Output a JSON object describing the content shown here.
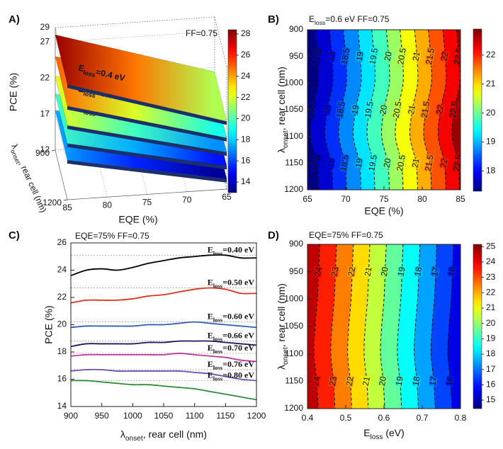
{
  "chart_data": [
    {
      "type": "surface3d",
      "panel": "A)",
      "annotation": "FF=0.75",
      "xlabel": "EQE (%)",
      "ylabel": [
        "λ",
        {
          "sub": "onset"
        },
        ", rear cell (nm)"
      ],
      "zlabel": "PCE (%)",
      "xlim": [
        85,
        65
      ],
      "xticks": [
        85,
        80,
        75,
        70,
        65
      ],
      "ylim": [
        900,
        1200
      ],
      "yticks": [
        900,
        1200
      ],
      "zlim": [
        12,
        29
      ],
      "zticks": [
        12,
        17,
        22,
        27,
        29
      ],
      "clim": [
        13.0,
        28.4
      ],
      "cticks": [
        14,
        16,
        18,
        20,
        22,
        24,
        26,
        28
      ],
      "series": [
        {
          "name": [
            "E",
            {
              "sub": "loss"
            },
            "=0.4 eV"
          ],
          "values": [
            28.0,
            21.4
          ]
        },
        {
          "name": [
            "E",
            {
              "sub": "loss"
            },
            "=0.5 eV"
          ],
          "values": [
            25.0,
            19.1
          ]
        },
        {
          "name": [
            "E",
            {
              "sub": "loss"
            },
            "=0.6 eV"
          ],
          "values": [
            22.3,
            17.1
          ]
        },
        {
          "name": [
            "E",
            {
              "sub": "loss"
            },
            "=0.7 eV"
          ],
          "values": [
            19.8,
            15.2
          ]
        },
        {
          "name": [
            "E",
            {
              "sub": "loss"
            },
            "=0.8 eV"
          ],
          "values": [
            17.5,
            13.4
          ]
        }
      ]
    },
    {
      "type": "contour",
      "panel": "B)",
      "title": [
        "E",
        {
          "sub": "loss"
        },
        "=0.6 eV FF=0.75"
      ],
      "xlabel": "EQE (%)",
      "ylabel": [
        "λ",
        {
          "sub": "onset"
        },
        ", rear cell (nm)"
      ],
      "xlim": [
        65,
        85
      ],
      "xticks": [
        65,
        70,
        75,
        80,
        85
      ],
      "ylim": [
        1200,
        900
      ],
      "yticks": [
        900,
        950,
        1000,
        1050,
        1100,
        1150,
        1200
      ],
      "clim": [
        17.3,
        22.9
      ],
      "cticks": [
        18,
        19,
        20,
        21,
        22
      ],
      "contour_y": [
        900,
        950,
        1000,
        1050,
        1100,
        1150,
        1200
      ],
      "contours": [
        {
          "level": 17.5,
          "x": [
            66.0,
            66.3,
            66.4,
            65.7,
            65.4,
            66.2,
            66.4
          ]
        },
        {
          "level": 18,
          "x": [
            67.9,
            68.2,
            68.3,
            67.6,
            67.3,
            68.1,
            68.3
          ]
        },
        {
          "level": 18.5,
          "x": [
            69.7,
            70.0,
            70.1,
            69.4,
            69.1,
            69.9,
            70.1
          ]
        },
        {
          "level": 19,
          "x": [
            71.6,
            71.9,
            72.0,
            71.3,
            71.0,
            71.8,
            72.0
          ]
        },
        {
          "level": 19.5,
          "x": [
            73.4,
            73.7,
            73.8,
            73.1,
            72.8,
            73.6,
            73.8
          ]
        },
        {
          "level": 20,
          "x": [
            75.3,
            75.6,
            75.7,
            75.0,
            74.7,
            75.5,
            75.7
          ]
        },
        {
          "level": 20.5,
          "x": [
            77.1,
            77.4,
            77.5,
            76.8,
            76.5,
            77.3,
            77.5
          ]
        },
        {
          "level": 21,
          "x": [
            79.0,
            79.3,
            79.4,
            78.7,
            78.4,
            79.2,
            79.4
          ]
        },
        {
          "level": 21.5,
          "x": [
            80.8,
            81.1,
            81.2,
            80.5,
            80.2,
            81.0,
            81.2
          ]
        },
        {
          "level": 22,
          "x": [
            82.7,
            83.0,
            83.1,
            82.4,
            82.1,
            82.9,
            83.1
          ]
        },
        {
          "level": 22.5,
          "x": [
            84.5,
            84.8,
            84.9,
            84.2,
            83.9,
            84.7,
            84.9
          ]
        }
      ]
    },
    {
      "type": "line",
      "panel": "C)",
      "title": "EQE=75% FF=0.75",
      "xlabel": [
        "λ",
        {
          "sub": "onset"
        },
        ", rear cell (nm)"
      ],
      "ylabel": "PCE (%)",
      "x": [
        900,
        925,
        950,
        975,
        1000,
        1025,
        1050,
        1075,
        1100,
        1125,
        1150,
        1175,
        1200
      ],
      "xlim": [
        900,
        1200
      ],
      "xticks": [
        900,
        950,
        1000,
        1050,
        1100,
        1150,
        1200
      ],
      "ylim": [
        14,
        26
      ],
      "yticks": [
        14,
        16,
        18,
        20,
        22,
        24,
        26
      ],
      "series": [
        {
          "name": [
            "E",
            {
              "sub": "loss"
            },
            "=0.40 eV"
          ],
          "color": "#000000",
          "values": [
            23.6,
            24.0,
            24.1,
            24.0,
            24.2,
            24.5,
            24.7,
            24.9,
            25.0,
            25.1,
            25.1,
            24.9,
            24.9
          ]
        },
        {
          "name": [
            "E",
            {
              "sub": "loss"
            },
            "=0.50 eV"
          ],
          "color": "#e0301e",
          "values": [
            21.6,
            21.8,
            21.8,
            21.8,
            21.9,
            22.1,
            22.2,
            22.4,
            22.6,
            22.7,
            22.6,
            22.3,
            22.3
          ]
        },
        {
          "name": [
            "E",
            {
              "sub": "loss"
            },
            "=0.60 eV"
          ],
          "color": "#2f5fb3",
          "values": [
            19.8,
            19.9,
            19.9,
            19.9,
            19.9,
            20.0,
            20.0,
            20.1,
            20.2,
            20.1,
            20.0,
            19.9,
            19.8
          ]
        },
        {
          "name": [
            "E",
            {
              "sub": "loss"
            },
            "=0.66 eV"
          ],
          "color": "#1a1a5e",
          "values": [
            18.4,
            18.6,
            18.6,
            18.6,
            18.6,
            18.7,
            18.7,
            18.8,
            18.8,
            18.8,
            18.7,
            18.6,
            18.5
          ]
        },
        {
          "name": [
            "E",
            {
              "sub": "loss"
            },
            "=0.70 eV"
          ],
          "color": "#b8389e",
          "values": [
            17.7,
            17.8,
            17.8,
            17.8,
            17.8,
            17.8,
            17.8,
            17.9,
            17.8,
            17.7,
            17.6,
            17.4,
            17.3
          ]
        },
        {
          "name": [
            "E",
            {
              "sub": "loss"
            },
            "=0.76 eV"
          ],
          "color": "#6a4fb0",
          "values": [
            16.6,
            16.7,
            16.7,
            16.6,
            16.6,
            16.6,
            16.6,
            16.6,
            16.5,
            16.4,
            16.2,
            16.0,
            15.9
          ]
        },
        {
          "name": [
            "E",
            {
              "sub": "loss"
            },
            "=0.80 eV"
          ],
          "color": "#2e8b3a",
          "values": [
            15.9,
            15.9,
            15.8,
            15.7,
            15.6,
            15.6,
            15.5,
            15.4,
            15.3,
            15.1,
            14.9,
            14.7,
            14.5
          ]
        }
      ]
    },
    {
      "type": "contour",
      "panel": "D)",
      "title": "EQE=75% FF=0.75",
      "xlabel": [
        "E",
        {
          "sub": "loss"
        },
        " (eV)"
      ],
      "ylabel": [
        "λ",
        {
          "sub": "onset"
        },
        ", rear cell (nm)"
      ],
      "xlim": [
        0.4,
        0.8
      ],
      "xticks": [
        0.4,
        0.5,
        0.6,
        0.7,
        0.8
      ],
      "ylim": [
        1200,
        900
      ],
      "yticks": [
        900,
        950,
        1000,
        1050,
        1100,
        1150,
        1200
      ],
      "clim": [
        14.45,
        25.15
      ],
      "cticks": [
        15,
        16,
        17,
        18,
        19,
        20,
        21,
        22,
        23,
        24,
        25
      ],
      "contour_y": [
        900,
        950,
        1000,
        1050,
        1100,
        1150,
        1200
      ],
      "contours": [
        {
          "level": 24,
          "x": [
            0.432,
            0.429,
            0.426,
            0.42,
            0.417,
            0.424,
            0.428
          ]
        },
        {
          "level": 23,
          "x": [
            0.476,
            0.473,
            0.47,
            0.464,
            0.461,
            0.468,
            0.472
          ]
        },
        {
          "level": 22,
          "x": [
            0.52,
            0.517,
            0.514,
            0.508,
            0.505,
            0.512,
            0.516
          ]
        },
        {
          "level": 21,
          "x": [
            0.563,
            0.56,
            0.557,
            0.551,
            0.548,
            0.555,
            0.559
          ]
        },
        {
          "level": 20,
          "x": [
            0.606,
            0.603,
            0.6,
            0.594,
            0.591,
            0.598,
            0.602
          ]
        },
        {
          "level": 19,
          "x": [
            0.65,
            0.647,
            0.644,
            0.638,
            0.635,
            0.642,
            0.646
          ]
        },
        {
          "level": 18,
          "x": [
            0.694,
            0.691,
            0.688,
            0.682,
            0.679,
            0.686,
            0.69
          ]
        },
        {
          "level": 17,
          "x": [
            0.738,
            0.735,
            0.732,
            0.726,
            0.723,
            0.73,
            0.734
          ]
        },
        {
          "level": 16,
          "x": [
            0.782,
            0.779,
            0.776,
            0.77,
            0.767,
            0.774,
            0.778
          ]
        }
      ]
    }
  ]
}
